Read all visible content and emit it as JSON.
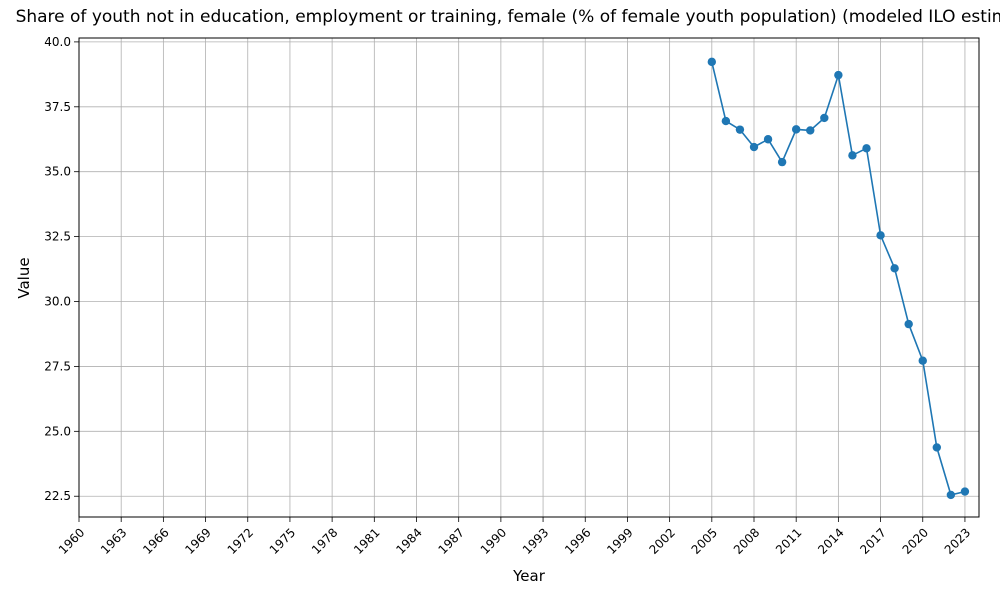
{
  "chart_data": {
    "type": "line",
    "title": "Share of youth not in education, employment or training, female (% of female youth population) (modeled ILO estimate)",
    "xlabel": "Year",
    "ylabel": "Value",
    "xlim": [
      1960,
      2024
    ],
    "ylim": [
      21.7,
      40.15
    ],
    "x_ticks": [
      1960,
      1963,
      1966,
      1969,
      1972,
      1975,
      1978,
      1981,
      1984,
      1987,
      1990,
      1993,
      1996,
      1999,
      2002,
      2005,
      2008,
      2011,
      2014,
      2017,
      2020,
      2023
    ],
    "y_ticks": [
      22.5,
      25.0,
      27.5,
      30.0,
      32.5,
      35.0,
      37.5,
      40.0
    ],
    "y_tick_labels": [
      "22.5",
      "25.0",
      "27.5",
      "30.0",
      "32.5",
      "35.0",
      "37.5",
      "40.0"
    ],
    "grid": true,
    "series": [
      {
        "color": "#1f77b4",
        "marker": "circle",
        "x": [
          2005,
          2006,
          2007,
          2008,
          2009,
          2010,
          2011,
          2012,
          2013,
          2014,
          2015,
          2016,
          2017,
          2018,
          2019,
          2020,
          2021,
          2022,
          2023
        ],
        "values": [
          39.23,
          36.95,
          36.62,
          35.95,
          36.25,
          35.37,
          36.63,
          36.59,
          37.07,
          38.72,
          35.63,
          35.9,
          32.55,
          31.28,
          29.13,
          27.72,
          24.38,
          22.55,
          22.68
        ]
      }
    ]
  }
}
